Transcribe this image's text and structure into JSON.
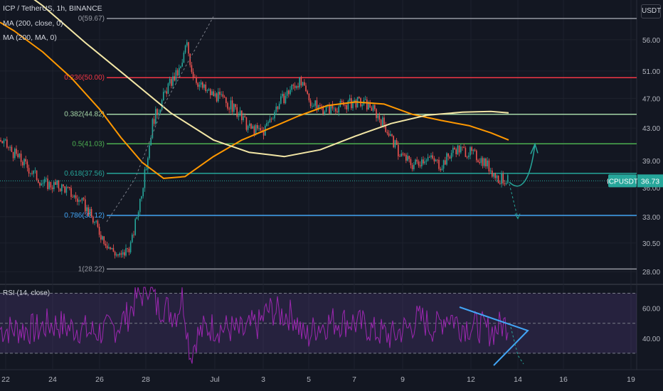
{
  "header": {
    "symbol_line": "ICP / TetherUS, 1h, BINANCE",
    "ma1_label": "MA (200, close, 0)",
    "ma2_label": "MA (200, MA, 0)",
    "price_unit": "USDT"
  },
  "rsi": {
    "label": "RSI (14, close)",
    "axis_ticks": [
      60.0,
      40.0
    ]
  },
  "chart_data": {
    "type": "line",
    "title": "ICP / TetherUS, 1h, BINANCE",
    "y_axis": {
      "ticks": [
        56.0,
        51.0,
        47.0,
        43.0,
        39.0,
        36.0,
        33.0,
        30.5,
        28.0
      ],
      "range": [
        27.3,
        62.0
      ],
      "scale": "log"
    },
    "x_axis": {
      "ticks": [
        "22",
        "24",
        "26",
        "28",
        "Jul",
        "3",
        "5",
        "7",
        "9",
        "12",
        "14",
        "16",
        "19"
      ]
    },
    "current_price": {
      "label": "ICPUSDT",
      "value": 36.73
    },
    "fib_levels": [
      {
        "ratio": "0",
        "price": 59.67,
        "label": "0(59.67)",
        "color": "#9598a1"
      },
      {
        "ratio": "0.236",
        "price": 50.0,
        "label": "0.236(50.00)",
        "color": "#f23645"
      },
      {
        "ratio": "0.382",
        "price": 44.82,
        "label": "0.382(44.82)",
        "color": "#a5d6a7"
      },
      {
        "ratio": "0.5",
        "price": 41.03,
        "label": "0.5(41.03)",
        "color": "#4caf50"
      },
      {
        "ratio": "0.618",
        "price": 37.56,
        "label": "0.618(37.56)",
        "color": "#26a69a"
      },
      {
        "ratio": "0.786",
        "price": 33.12,
        "label": "0.786(33.12)",
        "color": "#42a5f5"
      },
      {
        "ratio": "1",
        "price": 28.22,
        "label": "1(28.22)",
        "color": "#9598a1"
      }
    ],
    "series": [
      {
        "name": "MA (200, close, 0)",
        "color": "#ff9800",
        "x": [
          0,
          20,
          60,
          100,
          140,
          170,
          200,
          230,
          260,
          300,
          340,
          380,
          420,
          460,
          500,
          540,
          580,
          620,
          660,
          690,
          715
        ],
        "y": [
          59.0,
          57.5,
          54.0,
          50.0,
          45.5,
          41.8,
          38.8,
          37.0,
          37.2,
          39.5,
          41.5,
          43.0,
          44.6,
          46.0,
          46.5,
          46.2,
          44.8,
          44.0,
          43.3,
          42.4,
          41.5
        ]
      },
      {
        "name": "MA (200, MA, 0)",
        "color": "#f3e7a6",
        "x": [
          0,
          60,
          120,
          180,
          240,
          300,
          350,
          400,
          450,
          500,
          550,
          600,
          650,
          690,
          715
        ],
        "y": [
          68.0,
          62.0,
          55.5,
          50.0,
          45.0,
          41.5,
          40.0,
          39.5,
          40.3,
          42.0,
          43.6,
          44.7,
          45.1,
          45.2,
          45.0
        ]
      }
    ],
    "price_path": {
      "x": [
        0,
        30,
        60,
        90,
        120,
        140,
        155,
        170,
        185,
        195,
        205,
        215,
        225,
        235,
        245,
        255,
        262,
        270,
        280,
        290,
        300,
        310,
        330,
        350,
        370,
        390,
        410,
        420,
        440,
        460,
        480,
        500,
        520,
        540,
        560,
        580,
        600,
        620,
        640,
        660,
        680,
        700,
        715
      ],
      "y": [
        41.5,
        39.0,
        36.5,
        36.0,
        34.0,
        31.5,
        30.0,
        29.2,
        30.5,
        34.0,
        38.0,
        44.0,
        46.0,
        48.5,
        50.0,
        51.5,
        55.5,
        51.0,
        49.0,
        48.0,
        47.5,
        47.0,
        45.5,
        43.0,
        42.5,
        46.0,
        48.5,
        49.5,
        46.0,
        45.5,
        46.0,
        46.5,
        46.0,
        43.5,
        40.0,
        38.5,
        39.5,
        38.5,
        40.5,
        40.0,
        39.0,
        37.0,
        36.73
      ]
    },
    "rsi_range": [
      20,
      75
    ],
    "rsi_bands": [
      70,
      50,
      30
    ]
  }
}
